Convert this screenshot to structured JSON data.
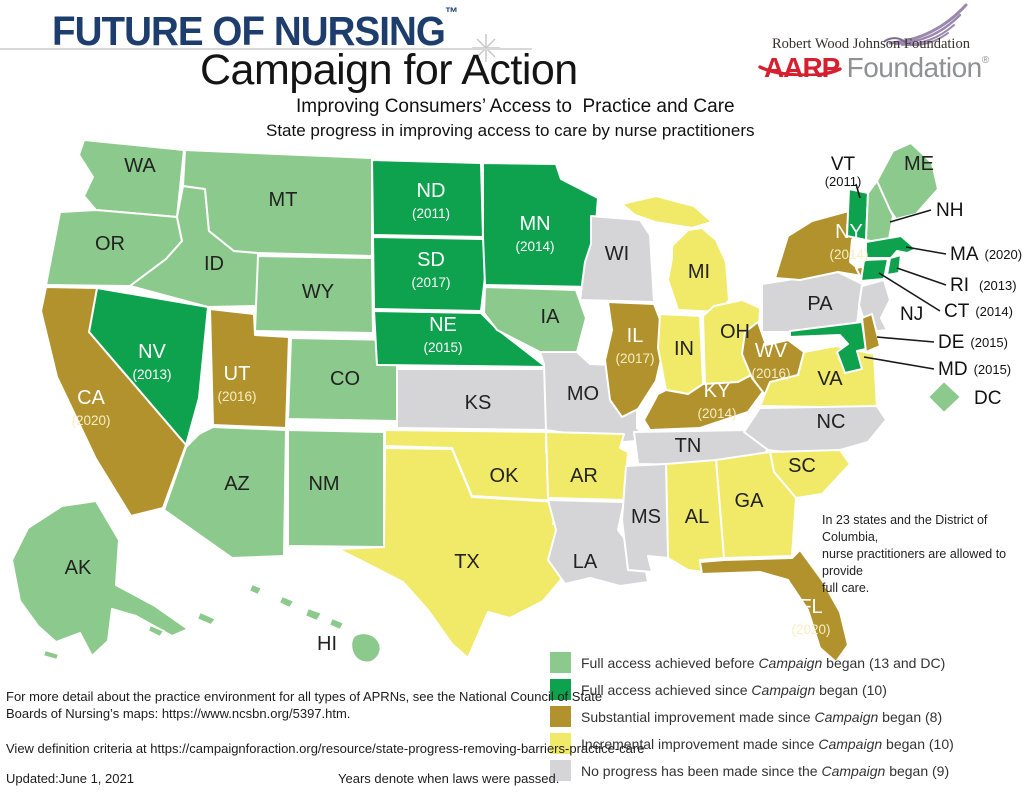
{
  "header": {
    "brand_title": "FUTURE OF NURSING",
    "brand_tm": "™",
    "campaign_title": "Campaign for Action",
    "subtitle1": "Improving Consumers’ Access to  Practice and Care",
    "subtitle2": "State progress in improving access to care by nurse practitioners"
  },
  "logos": {
    "rwjf": "Robert Wood Johnson Foundation",
    "aarp_red": "AARP",
    "aarp_gray": " Foundation",
    "aarp_reg": "®"
  },
  "annotation": {
    "line1": "In 23 states and the District of Columbia,",
    "line2": "nurse practitioners are allowed to provide",
    "line3": "full care."
  },
  "legend": {
    "colors": {
      "full_before": "#8cc98c",
      "full_since": "#0fa24e",
      "substantial": "#b2922d",
      "incremental": "#f1e968",
      "none": "#d5d5d7"
    },
    "label_colors": {
      "full_before": "#222222",
      "full_since": "#ffffff",
      "substantial": "#ffffff",
      "incremental": "#222222",
      "none": "#222222"
    },
    "items": [
      {
        "category": "full_before",
        "pre": "Full access achieved before ",
        "italic": "Campaign",
        "post": " began (13 and DC)"
      },
      {
        "category": "full_since",
        "pre": "Full access achieved since ",
        "italic": "Campaign",
        "post": " began (10)"
      },
      {
        "category": "substantial",
        "pre": "Substantial improvement made since ",
        "italic": "Campaign",
        "post": " began (8)"
      },
      {
        "category": "incremental",
        "pre": "Incremental improvement made since ",
        "italic": "Campaign",
        "post": " began (10)"
      },
      {
        "category": "none",
        "pre": "No progress has been made since the ",
        "italic": "Campaign",
        "post": " began (9)"
      }
    ]
  },
  "map": {
    "states": [
      {
        "id": "WA",
        "abbr": "WA",
        "category": "full_before"
      },
      {
        "id": "OR",
        "abbr": "OR",
        "category": "full_before"
      },
      {
        "id": "ID",
        "abbr": "ID",
        "category": "full_before"
      },
      {
        "id": "MT",
        "abbr": "MT",
        "category": "full_before"
      },
      {
        "id": "WY",
        "abbr": "WY",
        "category": "full_before"
      },
      {
        "id": "CO",
        "abbr": "CO",
        "category": "full_before"
      },
      {
        "id": "NM",
        "abbr": "NM",
        "category": "full_before"
      },
      {
        "id": "AZ",
        "abbr": "AZ",
        "category": "full_before"
      },
      {
        "id": "IA",
        "abbr": "IA",
        "category": "full_before"
      },
      {
        "id": "AK",
        "abbr": "AK",
        "category": "full_before"
      },
      {
        "id": "HI",
        "abbr": "HI",
        "category": "full_before"
      },
      {
        "id": "ME",
        "abbr": "ME",
        "category": "full_before"
      },
      {
        "id": "NH",
        "abbr": "NH",
        "category": "full_before"
      },
      {
        "id": "DC",
        "abbr": "DC",
        "category": "full_before"
      },
      {
        "id": "NV",
        "abbr": "NV",
        "year": "(2013)",
        "category": "full_since"
      },
      {
        "id": "ND",
        "abbr": "ND",
        "year": "(2011)",
        "category": "full_since"
      },
      {
        "id": "SD",
        "abbr": "SD",
        "year": "(2017)",
        "category": "full_since"
      },
      {
        "id": "NE",
        "abbr": "NE",
        "year": "(2015)",
        "category": "full_since"
      },
      {
        "id": "MN",
        "abbr": "MN",
        "year": "(2014)",
        "category": "full_since"
      },
      {
        "id": "VT",
        "abbr": "VT",
        "year": "(2011)",
        "category": "full_since"
      },
      {
        "id": "MA",
        "abbr": "MA",
        "year": "(2020)",
        "category": "full_since"
      },
      {
        "id": "RI",
        "abbr": "RI",
        "year": "(2013)",
        "category": "full_since"
      },
      {
        "id": "CT",
        "abbr": "CT",
        "year": "(2014)",
        "category": "full_since"
      },
      {
        "id": "MD",
        "abbr": "MD",
        "year": "(2015)",
        "category": "full_since"
      },
      {
        "id": "CA",
        "abbr": "CA",
        "year": "(2020)",
        "category": "substantial"
      },
      {
        "id": "UT",
        "abbr": "UT",
        "year": "(2016)",
        "category": "substantial"
      },
      {
        "id": "NY",
        "abbr": "NY",
        "year": "(2014)",
        "category": "substantial"
      },
      {
        "id": "IL",
        "abbr": "IL",
        "year": "(2017)",
        "category": "substantial"
      },
      {
        "id": "WV",
        "abbr": "WV",
        "year": "(2016)",
        "category": "substantial"
      },
      {
        "id": "KY",
        "abbr": "KY",
        "year": "(2014)",
        "category": "substantial"
      },
      {
        "id": "FL",
        "abbr": "FL",
        "year": "(2020)",
        "category": "substantial"
      },
      {
        "id": "DE",
        "abbr": "DE",
        "year": "(2015)",
        "category": "substantial"
      },
      {
        "id": "MI",
        "abbr": "MI",
        "category": "incremental"
      },
      {
        "id": "IN",
        "abbr": "IN",
        "category": "incremental"
      },
      {
        "id": "OH",
        "abbr": "OH",
        "category": "incremental"
      },
      {
        "id": "VA",
        "abbr": "VA",
        "category": "incremental"
      },
      {
        "id": "OK",
        "abbr": "OK",
        "category": "incremental"
      },
      {
        "id": "AR",
        "abbr": "AR",
        "category": "incremental"
      },
      {
        "id": "TX",
        "abbr": "TX",
        "category": "incremental"
      },
      {
        "id": "AL",
        "abbr": "AL",
        "category": "incremental"
      },
      {
        "id": "GA",
        "abbr": "GA",
        "category": "incremental"
      },
      {
        "id": "SC",
        "abbr": "SC",
        "category": "incremental"
      },
      {
        "id": "WI",
        "abbr": "WI",
        "category": "none"
      },
      {
        "id": "PA",
        "abbr": "PA",
        "category": "none"
      },
      {
        "id": "NJ",
        "abbr": "NJ",
        "category": "none"
      },
      {
        "id": "KS",
        "abbr": "KS",
        "category": "none"
      },
      {
        "id": "MO",
        "abbr": "MO",
        "category": "none"
      },
      {
        "id": "TN",
        "abbr": "TN",
        "category": "none"
      },
      {
        "id": "NC",
        "abbr": "NC",
        "category": "none"
      },
      {
        "id": "MS",
        "abbr": "MS",
        "category": "none"
      },
      {
        "id": "LA",
        "abbr": "LA",
        "category": "none"
      }
    ],
    "callouts": {
      "VT": {
        "abbr": "VT",
        "year": "(2011)"
      },
      "NH": {
        "abbr": "NH"
      },
      "MA": {
        "abbr": "MA",
        "year": "(2020)"
      },
      "RI": {
        "abbr": "RI",
        "year": "(2013)"
      },
      "CT": {
        "abbr": "CT",
        "year": "(2014)"
      },
      "NJ": {
        "abbr": "NJ"
      },
      "DE": {
        "abbr": "DE",
        "year": "(2015)"
      },
      "MD": {
        "abbr": "MD",
        "year": "(2015)"
      },
      "DC": {
        "abbr": "DC"
      }
    }
  },
  "footer": {
    "detail_line1": "For more detail about the practice environment for all types of APRNs, see the National Council of State",
    "detail_line2": "Boards of Nursing’s maps: https://www.ncsbn.org/5397.htm.",
    "criteria": "View definition criteria at https://campaignforaction.org/resource/state-progress-removing-barriers-practice-care",
    "updated": "Updated:June 1, 2021",
    "years_note": "Years denote when laws were passed."
  }
}
